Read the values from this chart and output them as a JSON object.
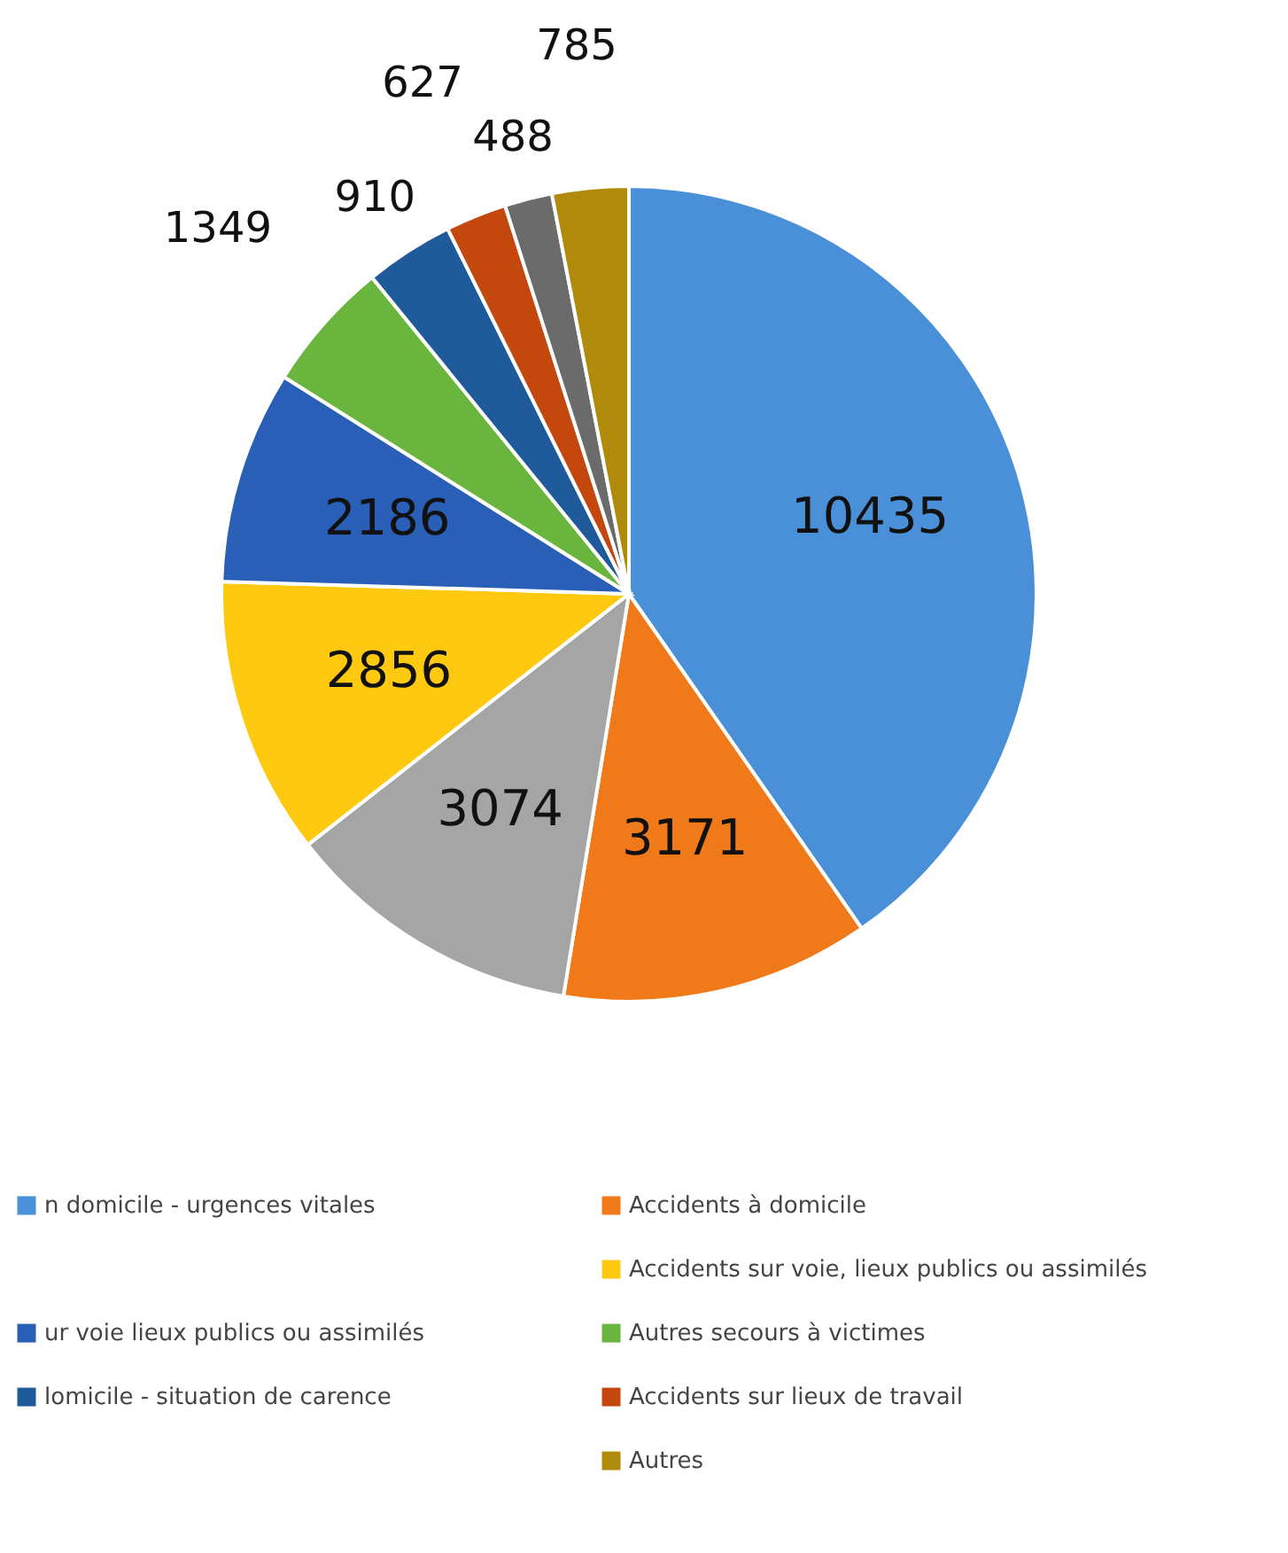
{
  "chart_data": {
    "type": "pie",
    "categories": [
      "n domicile - urgences vitales",
      "Accidents à domicile",
      null,
      "Accidents sur voie, lieux publics ou assimilés",
      "ur voie lieux publics ou assimilés",
      "Autres secours à victimes",
      "lomicile - situation de carence",
      "Accidents sur lieux de travail",
      null,
      "Autres"
    ],
    "values": [
      10435,
      3171,
      3074,
      2856,
      2186,
      1349,
      910,
      627,
      488,
      785
    ],
    "colors": [
      "#4a90d9",
      "#f07a1a",
      "#a5a5a5",
      "#ffc910",
      "#2a5fb8",
      "#6ab53e",
      "#1f5a9a",
      "#c4480e",
      "#6b6b6b",
      "#b08a0a"
    ],
    "data_labels": true,
    "legend": "bottom"
  }
}
